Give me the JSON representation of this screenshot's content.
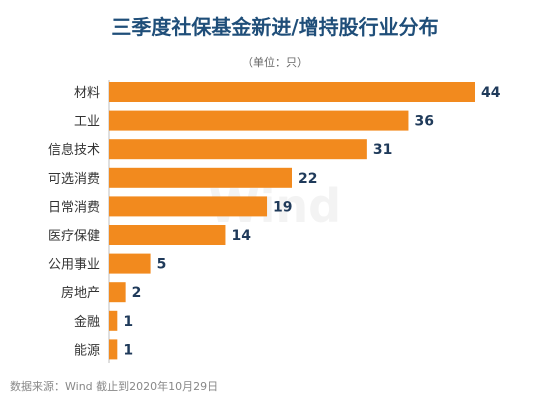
{
  "chart_data": {
    "type": "bar",
    "orientation": "horizontal",
    "title": "三季度社保基金新进/增持股行业分布",
    "unit_note": "（单位：只）",
    "categories": [
      "材料",
      "工业",
      "信息技术",
      "可选消费",
      "日常消费",
      "医疗保健",
      "公用事业",
      "房地产",
      "金融",
      "能源"
    ],
    "values": [
      44,
      36,
      31,
      22,
      19,
      14,
      5,
      2,
      1,
      1
    ],
    "xlim": [
      0,
      44
    ],
    "grid": false,
    "legend": "none",
    "bar_color": "#f28a1e",
    "axis_color": "#bfbfbf"
  },
  "source_note": "数据来源：Wind    截止到2020年10月29日",
  "watermark": "Wind"
}
